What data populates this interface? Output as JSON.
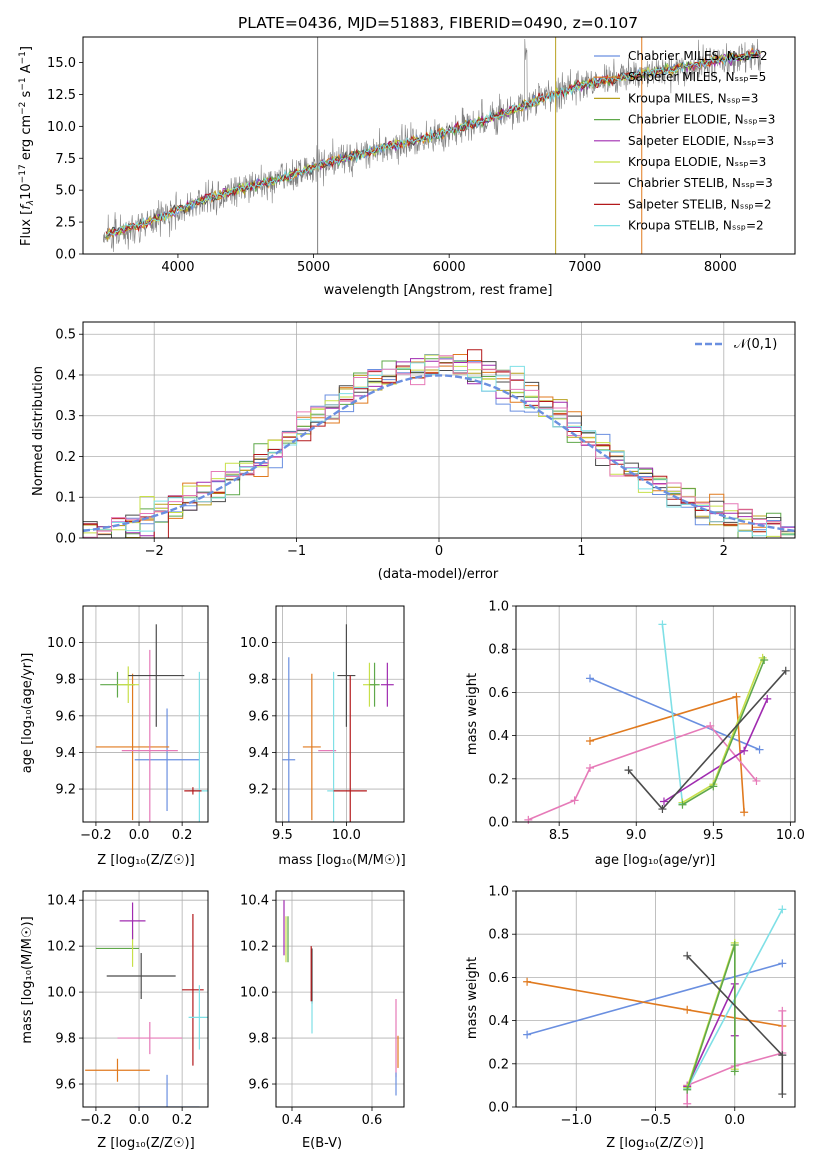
{
  "colors": {
    "model_colors": [
      "#6a8fe0",
      "#e07a1f",
      "#b8a11f",
      "#5fa84a",
      "#a02cb0",
      "#c8e04a",
      "#4b4b4b",
      "#b3191b",
      "#7fe0e6"
    ],
    "pink": "#e67ab8",
    "grid": "#b0b0b0",
    "data_gray": "#808080",
    "gaussian": "#6a8fe0"
  },
  "chart_data": [
    {
      "id": "spectrum",
      "type": "line",
      "title": "PLATE=0436, MJD=51883, FIBERID=0490, z=0.107",
      "xlabel": "wavelength [Angstrom, rest frame]",
      "ylabel": "Flux [f_λ 10^-17 erg cm^-2 s^-1 A^-1]",
      "xlim": [
        3300,
        8550
      ],
      "ylim": [
        0,
        17
      ],
      "xticks": [
        "4000",
        "5000",
        "6000",
        "7000",
        "8000"
      ],
      "yticks": [
        "0.0",
        "2.5",
        "5.0",
        "7.5",
        "10.0",
        "12.5",
        "15.0"
      ],
      "grid": false,
      "legend_position": "top-right",
      "data_envelope": {
        "x": [
          3450,
          3700,
          3900,
          4200,
          4500,
          4800,
          5000,
          5200,
          5500,
          5800,
          6000,
          6300,
          6600,
          6800,
          7000,
          7300,
          7600,
          8000,
          8300
        ],
        "y": [
          1.5,
          2.2,
          3.0,
          4.3,
          5.2,
          6.0,
          6.8,
          7.4,
          8.3,
          9.0,
          9.6,
          10.6,
          11.8,
          12.6,
          13.3,
          13.9,
          14.4,
          15.2,
          15.7
        ]
      },
      "series": [
        {
          "name": "Chabrier MILES, N_SSP=2"
        },
        {
          "name": "Salpeter MILES, N_SSP=5"
        },
        {
          "name": "Kroupa MILES, N_SSP=3"
        },
        {
          "name": "Chabrier ELODIE, N_SSP=3"
        },
        {
          "name": "Salpeter ELODIE, N_SSP=3"
        },
        {
          "name": "Kroupa ELODIE, N_SSP=3"
        },
        {
          "name": "Chabrier STELIB, N_SSP=3"
        },
        {
          "name": "Salpeter STELIB, N_SSP=2"
        },
        {
          "name": "Kroupa STELIB, N_SSP=2"
        }
      ]
    },
    {
      "id": "residuals",
      "type": "histogram",
      "xlabel": "(data-model)/error",
      "ylabel": "Normed distribution",
      "xlim": [
        -2.5,
        2.5
      ],
      "ylim": [
        0,
        0.53
      ],
      "xticks": [
        "−2",
        "−1",
        "0",
        "1",
        "2"
      ],
      "yticks": [
        "0.0",
        "0.1",
        "0.2",
        "0.3",
        "0.4",
        "0.5"
      ],
      "grid": true,
      "legend": "𝒩(0,1)",
      "legend_position": "top-right",
      "bin_width": 0.1,
      "bin_start": -2.5
    },
    {
      "id": "age-vs-Z",
      "type": "scatter",
      "xlabel": "Z [log₁₀(Z/Z☉)]",
      "ylabel": "age  [log₁₀(age/yr)]",
      "xlim": [
        -0.26,
        0.32
      ],
      "ylim": [
        9.02,
        10.2
      ],
      "xticks": [
        "−0.2",
        "0.0",
        "0.2"
      ],
      "yticks": [
        "9.2",
        "9.4",
        "9.6",
        "9.8",
        "10.0"
      ],
      "grid": true,
      "points": [
        {
          "x": 0.13,
          "y": 9.36,
          "xerr": 0.15,
          "yerr": 0.28,
          "c": 0
        },
        {
          "x": -0.03,
          "y": 9.43,
          "xerr": 0.17,
          "yerr": 0.4,
          "c": 1
        },
        {
          "x": -0.1,
          "y": 9.77,
          "xerr": 0.08,
          "yerr": 0.07,
          "c": 3
        },
        {
          "x": 0.05,
          "y": 9.41,
          "xerr": 0.13,
          "yerr": 0.55,
          "c": 9
        },
        {
          "x": -0.05,
          "y": 9.77,
          "xerr": 0.05,
          "yerr": 0.1,
          "c": 5
        },
        {
          "x": 0.08,
          "y": 9.82,
          "xerr": 0.13,
          "yerr": 0.28,
          "c": 6
        },
        {
          "x": 0.28,
          "y": 9.19,
          "xerr": 0.05,
          "yerr": 0.65,
          "c": 8
        },
        {
          "x": 0.25,
          "y": 9.19,
          "xerr": 0.04,
          "yerr": 0.02,
          "c": 7
        }
      ]
    },
    {
      "id": "age-vs-mass",
      "type": "scatter",
      "xlabel": "mass [log₁₀(M/M☉)]",
      "ylabel": "",
      "xlim": [
        9.45,
        10.45
      ],
      "ylim": [
        9.02,
        10.2
      ],
      "xticks": [
        "9.5",
        "10.0"
      ],
      "yticks": [
        "9.2",
        "9.4",
        "9.6",
        "9.8",
        "10.0"
      ],
      "grid": true,
      "points": [
        {
          "x": 9.55,
          "y": 9.36,
          "xerr": 0.05,
          "yerr": 0.56,
          "c": 0
        },
        {
          "x": 9.73,
          "y": 9.43,
          "xerr": 0.07,
          "yerr": 0.4,
          "c": 1
        },
        {
          "x": 9.85,
          "y": 9.41,
          "xerr": 0.07,
          "yerr": 0.0,
          "c": 9
        },
        {
          "x": 9.9,
          "y": 9.19,
          "xerr": 0.05,
          "yerr": 0.65,
          "c": 8
        },
        {
          "x": 10.0,
          "y": 9.82,
          "xerr": 0.07,
          "yerr": 0.28,
          "c": 6
        },
        {
          "x": 10.03,
          "y": 9.19,
          "xerr": 0.13,
          "yerr": 0.63,
          "c": 7
        },
        {
          "x": 10.18,
          "y": 9.77,
          "xerr": 0.05,
          "yerr": 0.12,
          "c": 5
        },
        {
          "x": 10.22,
          "y": 9.77,
          "xerr": 0.04,
          "yerr": 0.12,
          "c": 3
        },
        {
          "x": 10.32,
          "y": 9.77,
          "xerr": 0.05,
          "yerr": 0.12,
          "c": 4
        }
      ]
    },
    {
      "id": "weight-vs-age",
      "type": "line",
      "xlabel": "age  [log₁₀(age/yr)]",
      "ylabel": "mass weight",
      "xlim": [
        8.22,
        10.03
      ],
      "ylim": [
        0,
        1
      ],
      "xticks": [
        "8.5",
        "9.0",
        "9.5",
        "10.0"
      ],
      "yticks": [
        "0.0",
        "0.2",
        "0.4",
        "0.6",
        "0.8",
        "1.0"
      ],
      "grid": true,
      "series": [
        {
          "c": 0,
          "x": [
            8.7,
            9.8
          ],
          "y": [
            0.665,
            0.335
          ]
        },
        {
          "c": 1,
          "x": [
            8.7,
            9.65,
            9.7
          ],
          "y": [
            0.375,
            0.58,
            0.045
          ]
        },
        {
          "c": 9,
          "x": [
            8.3,
            8.6,
            8.7,
            9.48,
            9.78
          ],
          "y": [
            0.01,
            0.1,
            0.25,
            0.445,
            0.19
          ]
        },
        {
          "c": 8,
          "x": [
            9.17,
            9.3
          ],
          "y": [
            0.915,
            0.085
          ]
        },
        {
          "c": 4,
          "x": [
            9.18,
            9.7,
            9.85
          ],
          "y": [
            0.095,
            0.33,
            0.57
          ]
        },
        {
          "c": 5,
          "x": [
            9.3,
            9.5,
            9.82
          ],
          "y": [
            0.09,
            0.175,
            0.76
          ]
        },
        {
          "c": 3,
          "x": [
            9.3,
            9.5,
            9.83
          ],
          "y": [
            0.08,
            0.165,
            0.75
          ]
        },
        {
          "c": 6,
          "x": [
            8.95,
            9.17,
            9.97
          ],
          "y": [
            0.24,
            0.06,
            0.7
          ]
        }
      ]
    },
    {
      "id": "mass-vs-Z",
      "type": "scatter",
      "xlabel": "Z [log₁₀(Z/Z☉)]",
      "ylabel": "mass [log₁₀(M/M☉)]",
      "xlim": [
        -0.26,
        0.32
      ],
      "ylim": [
        9.5,
        10.44
      ],
      "xticks": [
        "−0.2",
        "0.0",
        "0.2"
      ],
      "yticks": [
        "9.6",
        "9.8",
        "10.0",
        "10.2",
        "10.4"
      ],
      "grid": true,
      "points": [
        {
          "x": 0.13,
          "y": 9.5,
          "xerr": 0.15,
          "yerr": 0.14,
          "c": 0
        },
        {
          "x": -0.1,
          "y": 9.66,
          "xerr": 0.15,
          "yerr": 0.05,
          "c": 1
        },
        {
          "x": -0.1,
          "y": 10.19,
          "xerr": 0.1,
          "yerr": 0.0,
          "c": 3
        },
        {
          "x": -0.03,
          "y": 10.19,
          "xerr": 0.0,
          "yerr": 0.08,
          "c": 5
        },
        {
          "x": -0.03,
          "y": 10.31,
          "xerr": 0.06,
          "yerr": 0.08,
          "c": 4
        },
        {
          "x": 0.05,
          "y": 9.8,
          "xerr": 0.15,
          "yerr": 0.07,
          "c": 9
        },
        {
          "x": 0.01,
          "y": 10.07,
          "xerr": 0.16,
          "yerr": 0.1,
          "c": 6
        },
        {
          "x": 0.25,
          "y": 10.01,
          "xerr": 0.05,
          "yerr": 0.33,
          "c": 7
        },
        {
          "x": 0.28,
          "y": 9.89,
          "xerr": 0.05,
          "yerr": 0.14,
          "c": 8
        }
      ]
    },
    {
      "id": "mass-vs-ebv",
      "type": "scatter",
      "xlabel": "E(B-V)",
      "ylabel": "",
      "xlim": [
        0.36,
        0.68
      ],
      "ylim": [
        9.5,
        10.44
      ],
      "xticks": [
        "0.4",
        "0.6"
      ],
      "yticks": [
        "9.6",
        "9.8",
        "10.0",
        "10.2",
        "10.4"
      ],
      "grid": true,
      "points": [
        {
          "x": 0.38,
          "y": 10.28,
          "xerr": 0,
          "yerr": 0.12,
          "c": 4
        },
        {
          "x": 0.385,
          "y": 10.23,
          "xerr": 0,
          "yerr": 0.1,
          "c": 5
        },
        {
          "x": 0.39,
          "y": 10.23,
          "xerr": 0,
          "yerr": 0.1,
          "c": 3
        },
        {
          "x": 0.45,
          "y": 10.07,
          "xerr": 0,
          "yerr": 0.12,
          "c": 6
        },
        {
          "x": 0.448,
          "y": 10.08,
          "xerr": 0,
          "yerr": 0.12,
          "c": 7
        },
        {
          "x": 0.45,
          "y": 9.89,
          "xerr": 0,
          "yerr": 0.07,
          "c": 8
        },
        {
          "x": 0.66,
          "y": 9.8,
          "xerr": 0,
          "yerr": 0.17,
          "c": 9
        },
        {
          "x": 0.665,
          "y": 9.74,
          "xerr": 0,
          "yerr": 0.07,
          "c": 1
        },
        {
          "x": 0.66,
          "y": 9.6,
          "xerr": 0,
          "yerr": 0.05,
          "c": 0
        }
      ]
    },
    {
      "id": "weight-vs-Z",
      "type": "line",
      "xlabel": "Z [log₁₀(Z/Z☉)]",
      "ylabel": "mass weight",
      "xlim": [
        -1.38,
        0.38
      ],
      "ylim": [
        0,
        1
      ],
      "xticks": [
        "−1.0",
        "−0.5",
        "0.0"
      ],
      "yticks": [
        "0.0",
        "0.2",
        "0.4",
        "0.6",
        "0.8",
        "1.0"
      ],
      "grid": true,
      "series": [
        {
          "c": 0,
          "x": [
            -1.31,
            0.3
          ],
          "y": [
            0.335,
            0.665
          ]
        },
        {
          "c": 1,
          "x": [
            -1.31,
            -0.3,
            0.3
          ],
          "y": [
            0.58,
            0.45,
            0.375
          ]
        },
        {
          "c": 9,
          "x": [
            -0.3,
            -0.3,
            0.0,
            0.3,
            0.3
          ],
          "y": [
            0.015,
            0.1,
            0.19,
            0.25,
            0.445
          ]
        },
        {
          "c": 8,
          "x": [
            -0.3,
            0.3
          ],
          "y": [
            0.085,
            0.915
          ]
        },
        {
          "c": 4,
          "x": [
            -0.3,
            0.0,
            0.0
          ],
          "y": [
            0.095,
            0.57,
            0.33
          ]
        },
        {
          "c": 5,
          "x": [
            -0.3,
            0.0,
            0.0
          ],
          "y": [
            0.09,
            0.76,
            0.175
          ]
        },
        {
          "c": 3,
          "x": [
            -0.3,
            0.0,
            0.0
          ],
          "y": [
            0.08,
            0.75,
            0.165
          ]
        },
        {
          "c": 6,
          "x": [
            -0.3,
            0.3,
            0.3
          ],
          "y": [
            0.7,
            0.24,
            0.06
          ]
        }
      ]
    }
  ]
}
